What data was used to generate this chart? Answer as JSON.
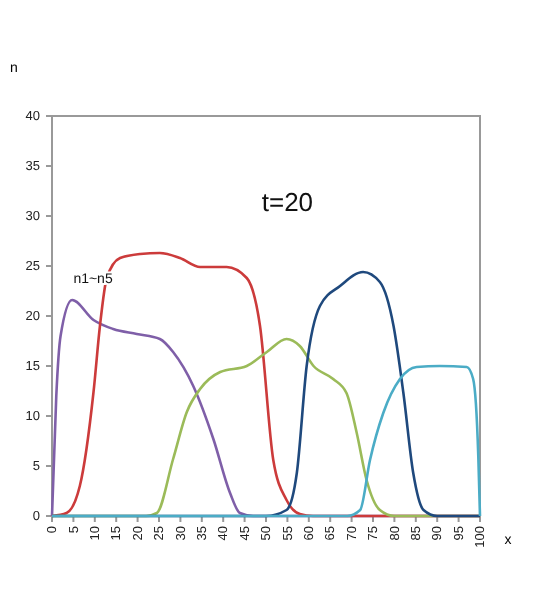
{
  "chart_data": {
    "type": "line",
    "xlabel": "x",
    "ylabel": "n",
    "annotations": [
      "t=20",
      "n1~n5"
    ],
    "xlim": [
      0,
      100
    ],
    "ylim": [
      0,
      40
    ],
    "xticks": [
      0,
      5,
      10,
      15,
      20,
      25,
      30,
      35,
      40,
      45,
      50,
      55,
      60,
      65,
      70,
      75,
      80,
      85,
      90,
      95,
      100
    ],
    "yticks": [
      0,
      5,
      10,
      15,
      20,
      25,
      30,
      35,
      40
    ],
    "grid": false,
    "marker": "none",
    "line_style": "solid",
    "series": [
      {
        "color": "#7f5fa8",
        "x": [
          0,
          1,
          2,
          4.7,
          9.7,
          14.3,
          19.8,
          25.2,
          28.3,
          33,
          37.7,
          41.6,
          43.9,
          47,
          100
        ],
        "values": [
          0,
          12,
          18,
          21.6,
          19.6,
          18.7,
          18.2,
          17.7,
          16.4,
          13,
          7.7,
          2.3,
          0.3,
          0,
          0
        ]
      },
      {
        "color": "#cc3b3b",
        "x": [
          0,
          3.4,
          6.5,
          9.7,
          11.2,
          12.8,
          15.9,
          20.6,
          25.2,
          29.9,
          34.6,
          40.8,
          45.5,
          48.6,
          51.7,
          54.8,
          57.9,
          61,
          100
        ],
        "values": [
          0,
          0.3,
          3,
          12.4,
          19,
          23.8,
          25.8,
          26.2,
          26.3,
          25.8,
          24.9,
          24.9,
          23.8,
          19,
          5.6,
          1.6,
          0.2,
          0,
          0
        ]
      },
      {
        "color": "#9bbb59",
        "x": [
          0,
          22,
          24.5,
          28.3,
          31.5,
          34.6,
          39.3,
          45.5,
          50.2,
          54.8,
          57.9,
          61.1,
          65.7,
          68.8,
          71.2,
          73.5,
          76.6,
          80,
          100
        ],
        "values": [
          0,
          0,
          0.3,
          5.7,
          10.4,
          12.7,
          14.4,
          15,
          16.4,
          17.7,
          17,
          15,
          13.7,
          12.3,
          8.3,
          3.6,
          0.6,
          0,
          0
        ]
      },
      {
        "color": "#1f497d",
        "x": [
          0,
          50,
          54.8,
          57.2,
          59.5,
          62.6,
          67.3,
          72.7,
          76.6,
          79.8,
          82.1,
          84.4,
          86.8,
          90,
          100
        ],
        "values": [
          0,
          0,
          0.6,
          4.3,
          15,
          21,
          23,
          24.4,
          23.4,
          19,
          12.3,
          4.3,
          0.6,
          0,
          0
        ]
      },
      {
        "color": "#4bacc6",
        "x": [
          0,
          69,
          72,
          74.3,
          77.4,
          81.3,
          85.2,
          90.6,
          96.9,
          98.4,
          99.6,
          100
        ],
        "values": [
          0,
          0,
          0.6,
          5.6,
          10.3,
          13.7,
          14.9,
          15,
          14.9,
          13.7,
          6,
          0
        ]
      }
    ]
  }
}
